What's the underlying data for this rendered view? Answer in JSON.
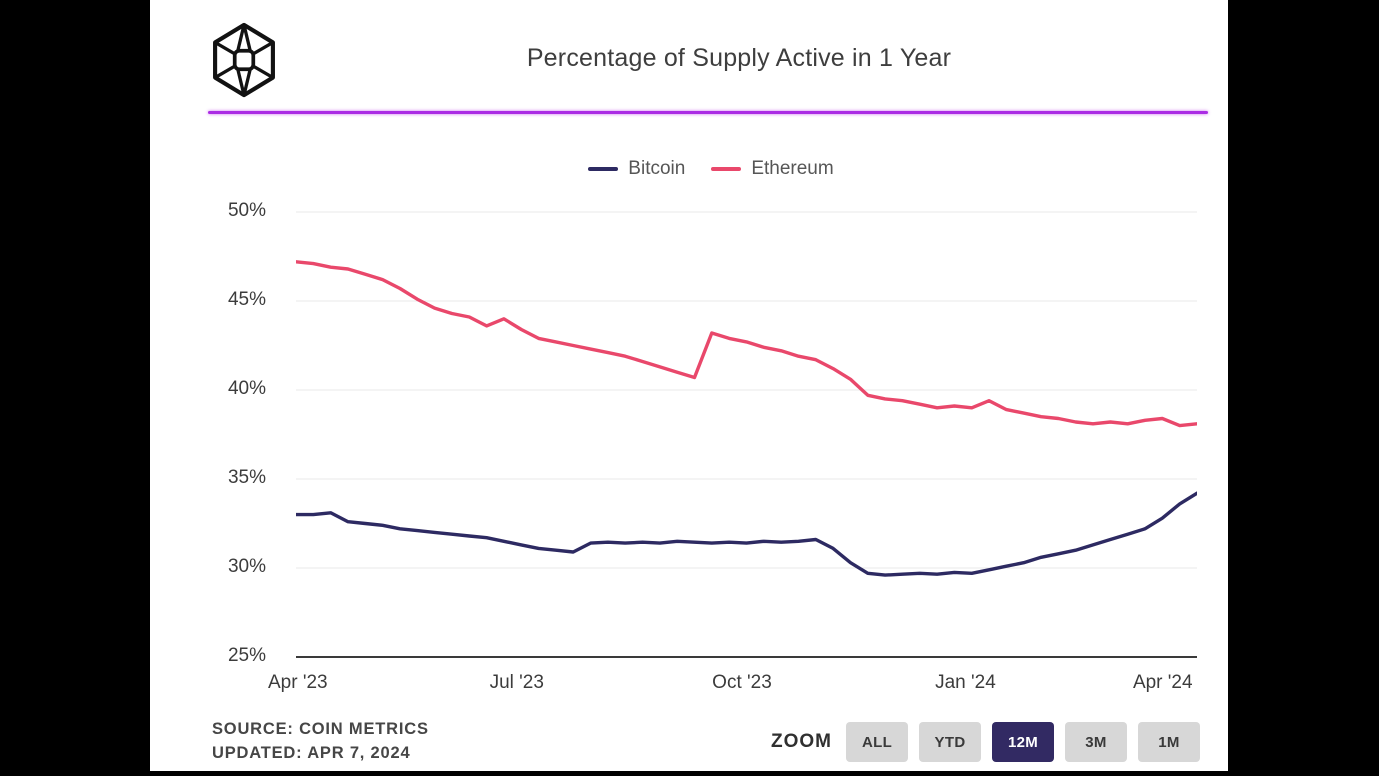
{
  "header": {
    "title": "Percentage of Supply Active in 1 Year",
    "logo_icon": "coin-metrics-cube-logo"
  },
  "colors": {
    "background": "#000000",
    "card": "#ffffff",
    "divider": "#ab2ce4",
    "bitcoin": "#2d2a62",
    "ethereum": "#e9486b",
    "gridline": "#e9e9e9",
    "axis_line": "#3a3a3a",
    "button_bg": "#d7d7d7",
    "active_button_bg": "#322a63",
    "active_button_text": "#ffffff"
  },
  "chart_data": {
    "type": "line",
    "title": "Percentage of Supply Active in 1 Year",
    "xlabel": "",
    "ylabel": "",
    "ylim": [
      25,
      50
    ],
    "grid": "horizontal",
    "legend_position": "top-center",
    "yticks": {
      "values": [
        50,
        45,
        40,
        35,
        30,
        25
      ],
      "labels": [
        "50%",
        "45%",
        "40%",
        "35%",
        "30%",
        "25%"
      ]
    },
    "xticks": [
      "Apr '23",
      "Jul '23",
      "Oct '23",
      "Jan '24",
      "Apr '24"
    ],
    "x": [
      "2023-04-07",
      "2023-04-14",
      "2023-04-21",
      "2023-04-28",
      "2023-05-05",
      "2023-05-12",
      "2023-05-19",
      "2023-05-26",
      "2023-06-02",
      "2023-06-09",
      "2023-06-16",
      "2023-06-23",
      "2023-06-30",
      "2023-07-07",
      "2023-07-14",
      "2023-07-21",
      "2023-07-28",
      "2023-08-04",
      "2023-08-11",
      "2023-08-18",
      "2023-08-25",
      "2023-09-01",
      "2023-09-08",
      "2023-09-15",
      "2023-09-22",
      "2023-09-29",
      "2023-10-06",
      "2023-10-13",
      "2023-10-20",
      "2023-10-27",
      "2023-11-03",
      "2023-11-10",
      "2023-11-17",
      "2023-11-24",
      "2023-12-01",
      "2023-12-08",
      "2023-12-15",
      "2023-12-22",
      "2023-12-29",
      "2024-01-05",
      "2024-01-12",
      "2024-01-19",
      "2024-01-26",
      "2024-02-02",
      "2024-02-09",
      "2024-02-16",
      "2024-02-23",
      "2024-03-01",
      "2024-03-08",
      "2024-03-15",
      "2024-03-22",
      "2024-03-29",
      "2024-04-05"
    ],
    "series": [
      {
        "name": "Bitcoin",
        "color": "#2d2a62",
        "values": [
          33.0,
          33.0,
          33.1,
          32.6,
          32.5,
          32.4,
          32.2,
          32.1,
          32.0,
          31.9,
          31.8,
          31.7,
          31.5,
          31.3,
          31.1,
          31.0,
          30.9,
          31.4,
          31.45,
          31.4,
          31.45,
          31.4,
          31.5,
          31.45,
          31.4,
          31.45,
          31.4,
          31.5,
          31.45,
          31.5,
          31.6,
          31.1,
          30.3,
          29.7,
          29.6,
          29.65,
          29.7,
          29.65,
          29.75,
          29.7,
          29.9,
          30.1,
          30.3,
          30.6,
          30.8,
          31.0,
          31.3,
          31.6,
          31.9,
          32.2,
          32.8,
          33.6,
          34.2
        ]
      },
      {
        "name": "Ethereum",
        "color": "#e9486b",
        "values": [
          47.2,
          47.1,
          46.9,
          46.8,
          46.5,
          46.2,
          45.7,
          45.1,
          44.6,
          44.3,
          44.1,
          43.6,
          44.0,
          43.4,
          42.9,
          42.7,
          42.5,
          42.3,
          42.1,
          41.9,
          41.6,
          41.3,
          41.0,
          40.7,
          43.2,
          42.9,
          42.7,
          42.4,
          42.2,
          41.9,
          41.7,
          41.2,
          40.6,
          39.7,
          39.5,
          39.4,
          39.2,
          39.0,
          39.1,
          39.0,
          39.4,
          38.9,
          38.7,
          38.5,
          38.4,
          38.2,
          38.1,
          38.2,
          38.1,
          38.3,
          38.4,
          38.0,
          38.1
        ]
      }
    ]
  },
  "footer": {
    "source_line1": "SOURCE: COIN METRICS",
    "source_line2": "UPDATED: APR 7, 2024",
    "zoom_label": "ZOOM",
    "zoom_buttons": [
      {
        "label": "ALL",
        "active": false
      },
      {
        "label": "YTD",
        "active": false
      },
      {
        "label": "12M",
        "active": true
      },
      {
        "label": "3M",
        "active": false
      },
      {
        "label": "1M",
        "active": false
      }
    ]
  }
}
